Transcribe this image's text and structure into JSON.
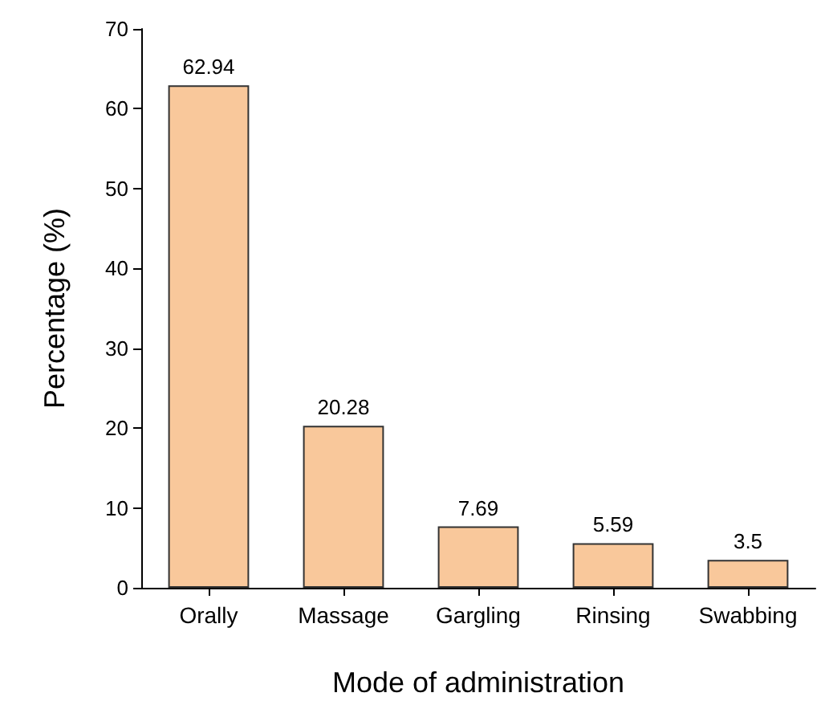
{
  "chart_data": {
    "type": "bar",
    "xlabel": "Mode of administration",
    "ylabel": "Percentage (%)",
    "categories": [
      "Orally",
      "Massage",
      "Gargling",
      "Rinsing",
      "Swabbing"
    ],
    "values": [
      62.94,
      20.28,
      7.69,
      5.59,
      3.5
    ],
    "color": "#f9c89b",
    "ylim": [
      0,
      70
    ],
    "yticks": [
      0,
      10,
      20,
      30,
      40,
      50,
      60,
      70
    ],
    "grid": false,
    "data_labels": true
  }
}
